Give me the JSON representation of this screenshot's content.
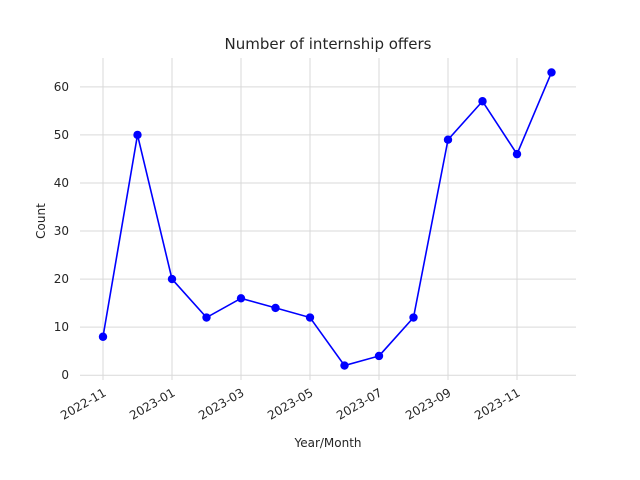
{
  "chart_data": {
    "type": "line",
    "title": "Number of internship offers",
    "xlabel": "Year/Month",
    "ylabel": "Count",
    "x": [
      "2022-11",
      "2022-12",
      "2023-01",
      "2023-02",
      "2023-03",
      "2023-04",
      "2023-05",
      "2023-06",
      "2023-07",
      "2023-08",
      "2023-09",
      "2023-10",
      "2023-11",
      "2023-12"
    ],
    "series": [
      {
        "values": [
          8,
          50,
          20,
          12,
          16,
          14,
          12,
          2,
          4,
          12,
          49,
          57,
          46,
          63
        ]
      }
    ],
    "x_tick_labels": [
      "2022-11",
      "2023-01",
      "2023-03",
      "2023-05",
      "2023-07",
      "2023-09",
      "2023-11"
    ],
    "y_ticks": [
      0,
      10,
      20,
      30,
      40,
      50,
      60
    ],
    "ylim": [
      -1,
      66
    ],
    "grid": true,
    "line_color": "#0000ff",
    "marker_color": "#0000ff"
  }
}
